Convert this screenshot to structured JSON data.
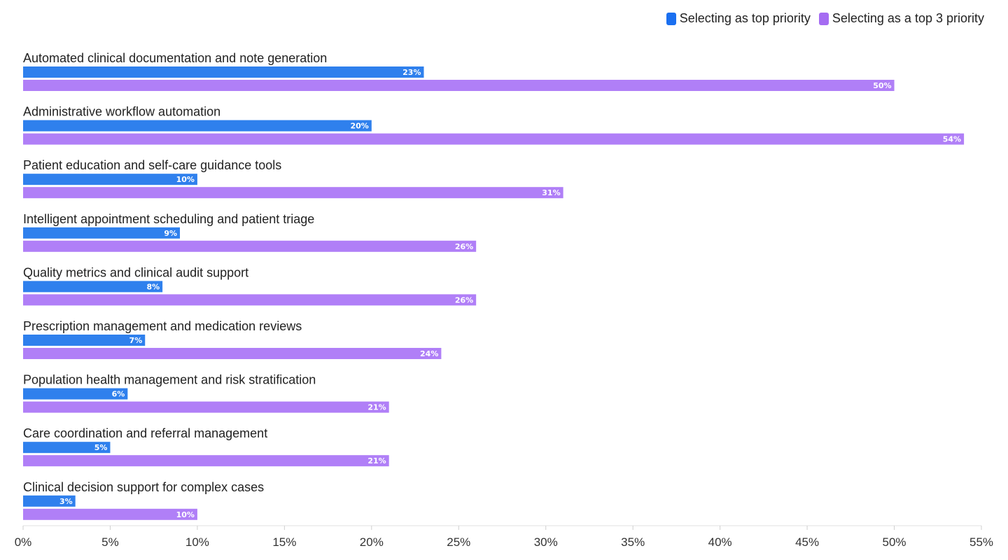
{
  "chart_data": {
    "type": "bar",
    "orientation": "horizontal",
    "categories": [
      "Automated clinical documentation and note generation",
      "Administrative workflow automation",
      "Patient education and self-care guidance tools",
      "Intelligent appointment scheduling and patient triage",
      "Quality metrics and clinical audit support",
      "Prescription management and medication reviews",
      "Population health management and risk stratification",
      "Care coordination and referral management",
      "Clinical decision support for complex cases"
    ],
    "series": [
      {
        "name": "Selecting as top priority",
        "color": "#2f80ed",
        "values": [
          23,
          20,
          10,
          9,
          8,
          7,
          6,
          5,
          3
        ],
        "labels": [
          "23%",
          "20%",
          "10%",
          "9%",
          "8%",
          "7%",
          "6%",
          "5%",
          "3%"
        ]
      },
      {
        "name": "Selecting as a top 3 priority",
        "color": "#b07ff7",
        "values": [
          50,
          54,
          31,
          26,
          26,
          24,
          21,
          21,
          10
        ],
        "labels": [
          "50%",
          "54%",
          "31%",
          "26%",
          "26%",
          "24%",
          "21%",
          "21%",
          "10%"
        ]
      }
    ],
    "xlim": [
      0,
      55
    ],
    "xticks": [
      0,
      5,
      10,
      15,
      20,
      25,
      30,
      35,
      40,
      45,
      50,
      55
    ],
    "xtick_labels": [
      "0%",
      "5%",
      "10%",
      "15%",
      "20%",
      "25%",
      "30%",
      "35%",
      "40%",
      "45%",
      "50%",
      "55%"
    ],
    "legend_position": "top-right",
    "grid": false
  },
  "legend_colors": {
    "top_priority": "#1a6ff0",
    "top3_priority": "#a56cf2"
  }
}
